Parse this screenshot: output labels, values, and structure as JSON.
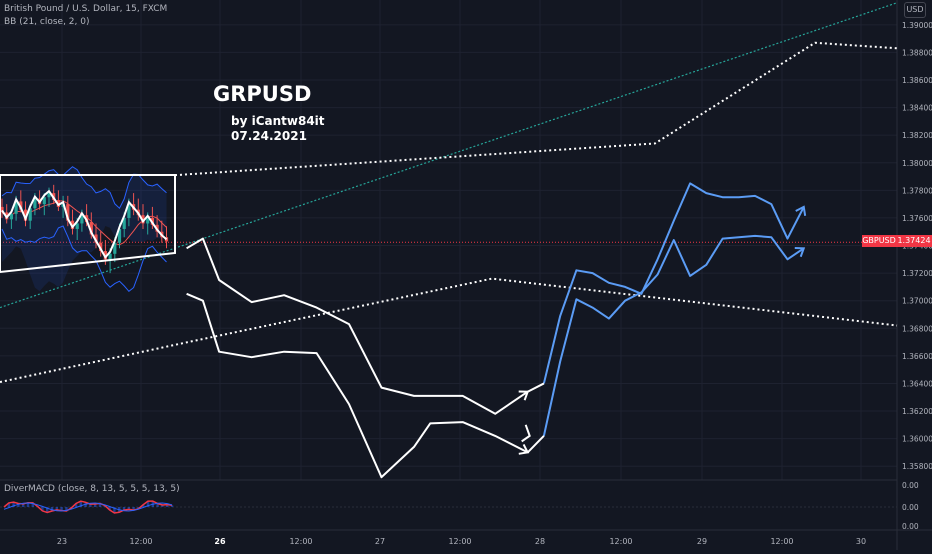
{
  "header": {
    "symbol_line": "British Pound / U.S. Dollar, 15, FXCM",
    "indicator_line": "BB (21, close, 2, 0)"
  },
  "annotations": {
    "title": "GRPUSD",
    "byline": "by iCantw84it",
    "date": "07.24.2021"
  },
  "currency_button": "USD",
  "price_label": {
    "symbol": "GBPUSD",
    "value": "1.37424"
  },
  "macd_label": "DiverMACD (close, 8, 13, 5, 5, 5, 13, 5)",
  "colors": {
    "background": "#131722",
    "grid": "#1e2230",
    "projection": "#ffffff",
    "projection_blue": "#5b9cf5",
    "bollinger": "#2962ff",
    "trendline": "#26a69a",
    "price_line": "#f23645",
    "candle_up": "#26a69a",
    "candle_down": "#ef5350"
  },
  "chart_data": {
    "type": "line",
    "y_axis": {
      "range": [
        1.357,
        1.3918
      ],
      "ticks": [
        "1.39000",
        "1.38800",
        "1.38600",
        "1.38400",
        "1.38200",
        "1.38000",
        "1.37800",
        "1.37600",
        "1.37400",
        "1.37200",
        "1.37000",
        "1.36800",
        "1.36600",
        "1.36400",
        "1.36200",
        "1.36000",
        "1.35800"
      ]
    },
    "x_axis": {
      "ticks": [
        "23",
        "12:00",
        "26",
        "12:00",
        "27",
        "12:00",
        "28",
        "12:00",
        "29",
        "12:00",
        "30"
      ],
      "bold_ticks": [
        "26"
      ]
    },
    "current_price": 1.37424,
    "macd_axis_ticks": [
      "0.00",
      "0.00",
      "0.00"
    ],
    "candles": [
      [
        1.3768,
        1.3774,
        1.376,
        1.3764
      ],
      [
        1.3764,
        1.377,
        1.3756,
        1.3759
      ],
      [
        1.3759,
        1.3766,
        1.3752,
        1.3763
      ],
      [
        1.3763,
        1.3776,
        1.3758,
        1.3772
      ],
      [
        1.3772,
        1.378,
        1.3764,
        1.3766
      ],
      [
        1.3766,
        1.3772,
        1.3754,
        1.3758
      ],
      [
        1.3758,
        1.377,
        1.3752,
        1.3767
      ],
      [
        1.3767,
        1.3778,
        1.3762,
        1.3774
      ],
      [
        1.3774,
        1.378,
        1.3766,
        1.377
      ],
      [
        1.377,
        1.3778,
        1.3762,
        1.3775
      ],
      [
        1.3775,
        1.3782,
        1.3768,
        1.3778
      ],
      [
        1.3778,
        1.3784,
        1.377,
        1.3773
      ],
      [
        1.3773,
        1.378,
        1.3765,
        1.3768
      ],
      [
        1.3768,
        1.3776,
        1.376,
        1.377
      ],
      [
        1.377,
        1.3776,
        1.3754,
        1.3758
      ],
      [
        1.3758,
        1.3766,
        1.3748,
        1.3752
      ],
      [
        1.3752,
        1.376,
        1.3744,
        1.3756
      ],
      [
        1.3756,
        1.3766,
        1.375,
        1.3762
      ],
      [
        1.3762,
        1.377,
        1.3754,
        1.3757
      ],
      [
        1.3757,
        1.3764,
        1.3745,
        1.3748
      ],
      [
        1.3748,
        1.3756,
        1.3738,
        1.3742
      ],
      [
        1.3742,
        1.375,
        1.3732,
        1.3736
      ],
      [
        1.3736,
        1.3744,
        1.3726,
        1.373
      ],
      [
        1.373,
        1.3738,
        1.372,
        1.3734
      ],
      [
        1.3734,
        1.3746,
        1.3728,
        1.3742
      ],
      [
        1.3742,
        1.3756,
        1.3738,
        1.3752
      ],
      [
        1.3752,
        1.3764,
        1.3746,
        1.376
      ],
      [
        1.376,
        1.3774,
        1.3754,
        1.377
      ],
      [
        1.377,
        1.3778,
        1.3762,
        1.3766
      ],
      [
        1.3766,
        1.3774,
        1.3758,
        1.3762
      ],
      [
        1.3762,
        1.377,
        1.3752,
        1.3756
      ],
      [
        1.3756,
        1.3764,
        1.3748,
        1.376
      ],
      [
        1.376,
        1.3768,
        1.3752,
        1.3755
      ],
      [
        1.3755,
        1.3762,
        1.3746,
        1.375
      ],
      [
        1.375,
        1.3758,
        1.3742,
        1.3746
      ],
      [
        1.3746,
        1.3754,
        1.3738,
        1.3743
      ]
    ],
    "series": [
      {
        "style": "white-outline",
        "x": [
          0,
          11
        ],
        "y": [
          1.3732,
          1.3736
        ]
      },
      {
        "style": "white-projection",
        "x": [
          11,
          12,
          13,
          15,
          17,
          19,
          21,
          23,
          25,
          26,
          28,
          30,
          32
        ],
        "y": [
          1.3705,
          1.37,
          1.3663,
          1.3659,
          1.3663,
          1.3662,
          1.3625,
          1.3572,
          1.3594,
          1.3611,
          1.3612,
          1.3602,
          1.359
        ]
      },
      {
        "style": "white-projection",
        "x": [
          11,
          12,
          13,
          15,
          17,
          19,
          21,
          23,
          25,
          26,
          28,
          30,
          32
        ],
        "y": [
          1.3738,
          1.3745,
          1.3715,
          1.3699,
          1.3704,
          1.3695,
          1.3683,
          1.3637,
          1.3631,
          1.3631,
          1.3631,
          1.3618,
          1.3634
        ]
      },
      {
        "style": "blue-projection",
        "x": [
          33,
          34,
          35,
          36,
          37,
          38,
          39,
          40,
          41,
          42,
          43,
          44,
          45,
          46,
          47,
          48,
          49
        ],
        "y": [
          1.3602,
          1.3656,
          1.3701,
          1.3695,
          1.3687,
          1.37,
          1.3706,
          1.3719,
          1.3744,
          1.3718,
          1.3726,
          1.3745,
          1.3746,
          1.3747,
          1.3746,
          1.373,
          1.3738
        ]
      },
      {
        "style": "blue-projection",
        "x": [
          33,
          34,
          35,
          36,
          37,
          38,
          39,
          40,
          41,
          42,
          43,
          44,
          45,
          46,
          47,
          48,
          49
        ],
        "y": [
          1.364,
          1.3689,
          1.3722,
          1.372,
          1.3713,
          1.371,
          1.3705,
          1.373,
          1.3758,
          1.3785,
          1.3778,
          1.3775,
          1.3775,
          1.3776,
          1.377,
          1.3745,
          1.3768
        ]
      }
    ]
  }
}
